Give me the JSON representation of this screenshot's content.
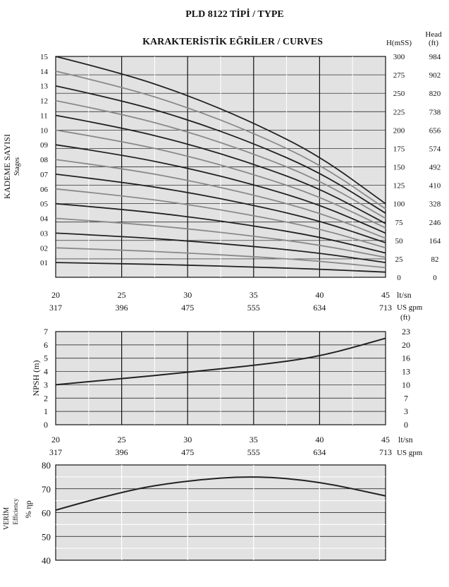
{
  "header": {
    "title": "PLD 8122 TİPİ / TYPE",
    "subtitle": "KARAKTERİSTİK EĞRİLER / CURVES"
  },
  "colors": {
    "panel_bg": "#e2e2e2",
    "curve_dark": "#222222",
    "curve_light": "#8a8a8a",
    "grid": "#111111"
  },
  "x_axis": {
    "lts_ticks": [
      "20",
      "25",
      "30",
      "35",
      "40",
      "45"
    ],
    "gpm_ticks": [
      "317",
      "396",
      "475",
      "555",
      "634",
      "713"
    ],
    "unit_lts": "lt/sn",
    "unit_gpm": "US gpm"
  },
  "head_chart": {
    "left_label_1": "KADEME SAYISI",
    "left_label_2": "Stages",
    "right_unit_1": "H(mSS)",
    "right_unit_2": "Head",
    "right_unit_3": "(ft)",
    "below_unit": "(ft)",
    "stage_labels": [
      "01",
      "02",
      "03",
      "04",
      "05",
      "06",
      "07",
      "08",
      "09",
      "10",
      "11",
      "12",
      "13",
      "14",
      "15"
    ],
    "mss_ticks": [
      "0",
      "25",
      "50",
      "75",
      "100",
      "125",
      "150",
      "175",
      "200",
      "225",
      "250",
      "275",
      "300"
    ],
    "ft_ticks": [
      "0",
      "82",
      "164",
      "246",
      "328",
      "410",
      "492",
      "574",
      "656",
      "738",
      "820",
      "902",
      "984"
    ]
  },
  "npsh_chart": {
    "ylabel": "NPSH (m)",
    "m_ticks": [
      "0",
      "1",
      "2",
      "3",
      "4",
      "5",
      "6",
      "7"
    ],
    "ft_ticks": [
      "0",
      "3",
      "7",
      "10",
      "13",
      "16",
      "20",
      "23"
    ]
  },
  "eff_chart": {
    "ylabel_1": "VERİM",
    "ylabel_2": "Efficiency",
    "ylabel_3": "% ηp",
    "ticks": [
      "40",
      "50",
      "60",
      "70",
      "80"
    ]
  },
  "chart_data": [
    {
      "type": "line",
      "title": "KARAKTERİSTİK EĞRİLER / CURVES",
      "xlabel": "lt/sn",
      "ylabel": "H(mSS)",
      "xlim": [
        20,
        45
      ],
      "ylim": [
        0,
        300
      ],
      "x": [
        20,
        25,
        30,
        35,
        40,
        45
      ],
      "series": [
        {
          "name": "01",
          "values": [
            20,
            18.5,
            16.5,
            14,
            11,
            7
          ]
        },
        {
          "name": "02",
          "values": [
            40,
            37,
            33,
            28,
            22,
            13
          ]
        },
        {
          "name": "03",
          "values": [
            60,
            55.5,
            49.5,
            42,
            33,
            20
          ]
        },
        {
          "name": "04",
          "values": [
            80,
            74,
            66,
            56,
            44,
            27
          ]
        },
        {
          "name": "05",
          "values": [
            100,
            92.5,
            82.5,
            70,
            55,
            33
          ]
        },
        {
          "name": "06",
          "values": [
            120,
            111,
            99,
            84,
            66,
            40
          ]
        },
        {
          "name": "07",
          "values": [
            140,
            129.5,
            115.5,
            98,
            77,
            47
          ]
        },
        {
          "name": "08",
          "values": [
            160,
            148,
            132,
            112,
            88,
            53
          ]
        },
        {
          "name": "09",
          "values": [
            180,
            166.5,
            148.5,
            126,
            99,
            60
          ]
        },
        {
          "name": "10",
          "values": [
            200,
            185,
            165,
            140,
            110,
            67
          ]
        },
        {
          "name": "11",
          "values": [
            220,
            203.5,
            181.5,
            154,
            121,
            73
          ]
        },
        {
          "name": "12",
          "values": [
            240,
            222,
            198,
            168,
            132,
            80
          ]
        },
        {
          "name": "13",
          "values": [
            260,
            240.5,
            214.5,
            182,
            143,
            87
          ]
        },
        {
          "name": "14",
          "values": [
            280,
            259,
            231,
            196,
            154,
            93
          ]
        },
        {
          "name": "15",
          "values": [
            300,
            277.5,
            247.5,
            210,
            165,
            100
          ]
        }
      ],
      "grid": true
    },
    {
      "type": "line",
      "xlabel": "lt/sn",
      "ylabel": "NPSH (m)",
      "xlim": [
        20,
        45
      ],
      "ylim": [
        0,
        7
      ],
      "x": [
        20,
        25,
        30,
        35,
        40,
        45
      ],
      "values": [
        3.0,
        3.45,
        3.95,
        4.45,
        5.1,
        6.5
      ],
      "grid": true
    },
    {
      "type": "line",
      "xlabel": "lt/sn",
      "ylabel": "% ηp",
      "xlim": [
        20,
        45
      ],
      "ylim": [
        40,
        80
      ],
      "x": [
        20,
        25,
        30,
        35,
        40,
        45
      ],
      "values": [
        61,
        69,
        73.5,
        75.5,
        73,
        67
      ],
      "grid": true
    }
  ]
}
